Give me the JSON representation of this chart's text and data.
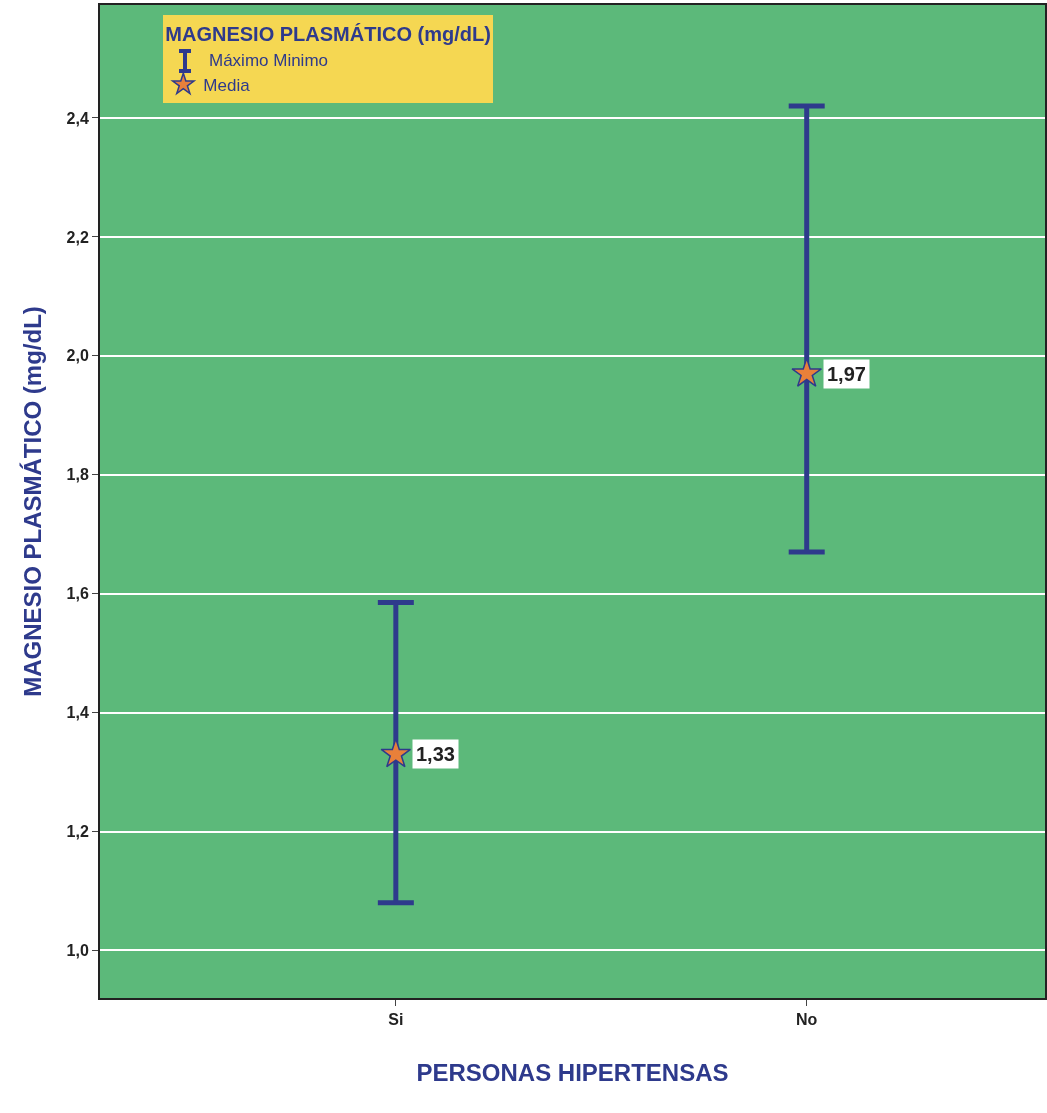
{
  "chart_data": {
    "type": "scatter",
    "xlabel": "PERSONAS HIPERTENSAS",
    "ylabel": "MAGNESIO PLASMÁTICO (mg/dL)",
    "legend_title": "MAGNESIO PLASMÁTICO (mg/dL)",
    "annotations": [
      "Máximo Minimo"
    ],
    "categories": [
      "Si",
      "No"
    ],
    "series": [
      {
        "name": "Media",
        "color": "#e8803a",
        "values": [
          1.33,
          1.97
        ],
        "errors": [
          [
            1.08,
            1.585
          ],
          [
            1.67,
            2.42
          ]
        ],
        "value_labels": [
          "1,33",
          "1,97"
        ]
      }
    ],
    "marker": "star",
    "ylim": [
      0.92,
      2.59
    ],
    "yticks": [
      {
        "value": 1.0,
        "label": "1,0"
      },
      {
        "value": 1.2,
        "label": "1,2"
      },
      {
        "value": 1.4,
        "label": "1,4"
      },
      {
        "value": 1.6,
        "label": "1,6"
      },
      {
        "value": 1.8,
        "label": "1,8"
      },
      {
        "value": 2.0,
        "label": "2,0"
      },
      {
        "value": 2.2,
        "label": "2,2"
      },
      {
        "value": 2.4,
        "label": "2,4"
      }
    ],
    "grid": "y",
    "legend": "top left"
  }
}
